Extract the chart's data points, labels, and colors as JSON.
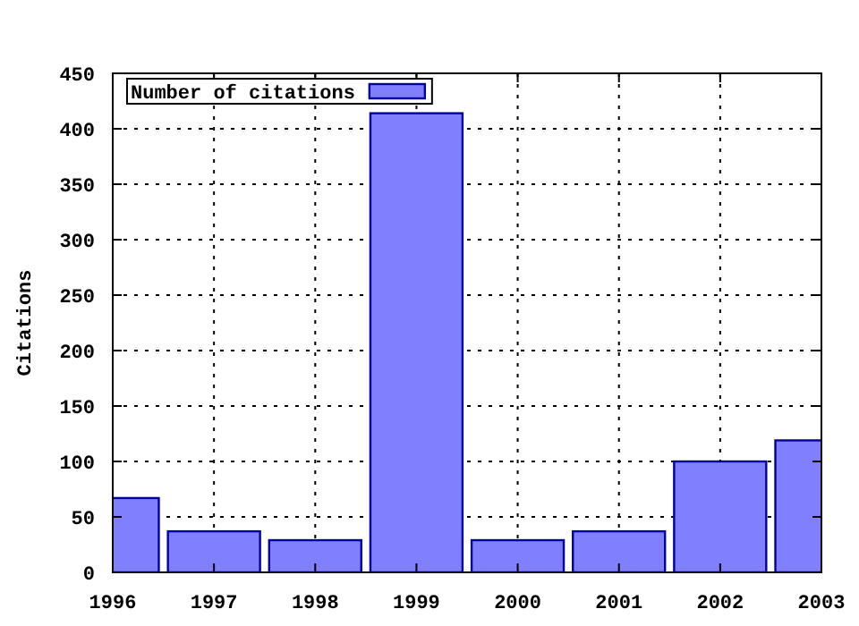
{
  "chart_data": {
    "type": "bar",
    "ylabel": "Citations",
    "x": [
      1996,
      1997,
      1998,
      1999,
      2000,
      2001,
      2002,
      2003
    ],
    "series": [
      {
        "name": "Number of citations",
        "color": "#8080ff",
        "values": [
          67,
          37,
          29,
          414,
          29,
          37,
          100,
          119
        ]
      }
    ],
    "xlim": [
      1996,
      2003
    ],
    "xticks": [
      1996,
      1997,
      1998,
      1999,
      2000,
      2001,
      2002,
      2003
    ],
    "ylim": [
      0,
      450
    ],
    "yticks": [
      0,
      50,
      100,
      150,
      200,
      250,
      300,
      350,
      400,
      450
    ],
    "grid": true,
    "legend": "top left"
  }
}
